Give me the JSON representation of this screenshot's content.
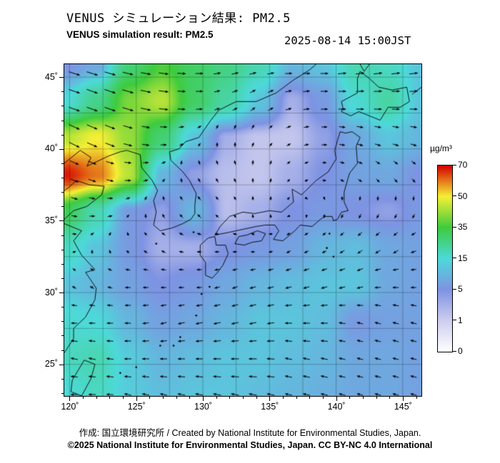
{
  "header": {
    "title_jp": "VENUS シミュレーション結果: PM2.5",
    "title_en": "VENUS simulation result: PM2.5",
    "datetime": "2025-08-14 15:00JST"
  },
  "footer": {
    "credit": "作成: 国立環境研究所 / Created by National Institute for Environmental Studies, Japan.",
    "copyright": "©2025 National Institute for Environmental Studies, Japan. CC BY-NC 4.0 International"
  },
  "colorbar": {
    "unit": "µg/m³",
    "ticks": [
      0,
      1,
      5,
      15,
      35,
      50,
      70
    ]
  },
  "chart_data": {
    "type": "heatmap",
    "title": "VENUS simulation result: PM2.5",
    "subtitle_jp": "VENUS シミュレーション結果: PM2.5",
    "timestamp": "2025-08-14 15:00JST",
    "units": "µg/m³",
    "overlays": [
      "wind-vectors",
      "coastlines",
      "graticule"
    ],
    "lon_range": [
      119.6,
      146.4
    ],
    "lat_range": [
      22.8,
      45.9
    ],
    "graticule_step": 2.5,
    "xticks": {
      "values": [
        120,
        125,
        130,
        135,
        140,
        145
      ],
      "labels": [
        "120˚",
        "125˚",
        "130˚",
        "135˚",
        "140˚",
        "145˚"
      ]
    },
    "yticks": {
      "values": [
        25,
        30,
        35,
        40,
        45
      ],
      "labels": [
        "25˚",
        "30˚",
        "35˚",
        "40˚",
        "45˚"
      ]
    },
    "colormap": {
      "values": [
        0,
        1,
        5,
        15,
        35,
        50,
        70
      ],
      "colors": [
        "#ffffff",
        "#cdcdee",
        "#7e93e2",
        "#4dd9d9",
        "#3ecb3e",
        "#f5ef35",
        "#d40000"
      ]
    },
    "pm25": {
      "lons": [
        119.6,
        122.0,
        124.5,
        126.9,
        129.3,
        131.8,
        134.2,
        136.6,
        139.1,
        141.5,
        143.9,
        146.4
      ],
      "lats": [
        45.9,
        43.3,
        40.8,
        38.2,
        35.6,
        33.0,
        30.5,
        27.9,
        25.4,
        22.8
      ],
      "values": [
        [
          5,
          8,
          28,
          36,
          30,
          26,
          20,
          10,
          12,
          20,
          18,
          12
        ],
        [
          15,
          25,
          40,
          45,
          30,
          22,
          12,
          3,
          6,
          16,
          22,
          12
        ],
        [
          45,
          50,
          42,
          28,
          12,
          3,
          1.5,
          1.5,
          4,
          8,
          12,
          10
        ],
        [
          68,
          60,
          45,
          10,
          4,
          2,
          1.5,
          3,
          5,
          7,
          8,
          5
        ],
        [
          32,
          20,
          6,
          4,
          10,
          2,
          3,
          5,
          6,
          5,
          4,
          6
        ],
        [
          18,
          12,
          6,
          3,
          3,
          5,
          6,
          7,
          10,
          11,
          8,
          7
        ],
        [
          12,
          10,
          7,
          5,
          6,
          8,
          10,
          11,
          12,
          12,
          8,
          7
        ],
        [
          16,
          15,
          10,
          7,
          8,
          10,
          12,
          12,
          11,
          6,
          7,
          7
        ],
        [
          18,
          20,
          13,
          10,
          11,
          12,
          12,
          11,
          10,
          8,
          8,
          7
        ],
        [
          15,
          18,
          13,
          11,
          12,
          12,
          11,
          10,
          9,
          8,
          8,
          7
        ]
      ]
    },
    "wind": {
      "u": [
        [
          10,
          10,
          9,
          8,
          6,
          5,
          5,
          5,
          6,
          7,
          7,
          7
        ],
        [
          12,
          11,
          10,
          8,
          5,
          3,
          3,
          4,
          5,
          6,
          6,
          6
        ],
        [
          10,
          9,
          7,
          4,
          1,
          0,
          1,
          2,
          3,
          4,
          4,
          4
        ],
        [
          7,
          6,
          4,
          1,
          -1,
          -1,
          0,
          1,
          1,
          2,
          2,
          2
        ],
        [
          4,
          3,
          1,
          -1,
          -2,
          -1,
          0,
          0,
          0,
          -1,
          -1,
          -1
        ],
        [
          1,
          0,
          -1,
          -2,
          -2,
          -2,
          -1,
          -2,
          -2,
          -3,
          -3,
          -3
        ],
        [
          -2,
          -2,
          -3,
          -3,
          -3,
          -3,
          -4,
          -4,
          -4,
          -4,
          -4,
          -3
        ],
        [
          -4,
          -4,
          -4,
          -4,
          -5,
          -5,
          -5,
          -5,
          -5,
          -4,
          -4,
          -4
        ],
        [
          -5,
          -5,
          -5,
          -5,
          -5,
          -6,
          -6,
          -5,
          -5,
          -4,
          -4,
          -4
        ],
        [
          -5,
          -5,
          -5,
          -5,
          -6,
          -6,
          -6,
          -5,
          -5,
          -4,
          -4,
          -4
        ]
      ],
      "v": [
        [
          -3,
          -3,
          -2,
          -1,
          0,
          1,
          1,
          0,
          0,
          1,
          1,
          1
        ],
        [
          -4,
          -4,
          -3,
          -1,
          0,
          1,
          2,
          1,
          0,
          0,
          0,
          0
        ],
        [
          -5,
          -4,
          -2,
          0,
          1,
          2,
          2,
          1,
          0,
          -1,
          -1,
          -1
        ],
        [
          -3,
          -2,
          0,
          1,
          2,
          2,
          2,
          1,
          0,
          -1,
          -2,
          -2
        ],
        [
          -1,
          0,
          1,
          2,
          2,
          1,
          1,
          0,
          -1,
          -2,
          -2,
          -2
        ],
        [
          0,
          1,
          1,
          1,
          0,
          0,
          0,
          -1,
          -1,
          -2,
          -2,
          -1
        ],
        [
          1,
          1,
          0,
          0,
          0,
          -1,
          -1,
          -1,
          -1,
          -1,
          0,
          0
        ],
        [
          0,
          0,
          0,
          -1,
          -1,
          -1,
          -1,
          0,
          0,
          1,
          1,
          1
        ],
        [
          1,
          1,
          0,
          0,
          0,
          0,
          0,
          1,
          1,
          1,
          1,
          1
        ],
        [
          0,
          0,
          1,
          1,
          1,
          1,
          1,
          1,
          1,
          1,
          1,
          1
        ]
      ]
    },
    "coastlines": {
      "honshu": [
        [
          130.9,
          34.0
        ],
        [
          132,
          34.2
        ],
        [
          133,
          34.4
        ],
        [
          134,
          34.6
        ],
        [
          134.7,
          34.7
        ],
        [
          135.4,
          34.7
        ],
        [
          135.7,
          34.3
        ],
        [
          135.3,
          33.7
        ],
        [
          136,
          33.6
        ],
        [
          136.9,
          34.3
        ],
        [
          137.3,
          34.7
        ],
        [
          138.2,
          34.6
        ],
        [
          138.7,
          35.0
        ],
        [
          139.1,
          35.3
        ],
        [
          139.7,
          35.3
        ],
        [
          139.8,
          35.0
        ],
        [
          140.1,
          35.1
        ],
        [
          140.4,
          35.6
        ],
        [
          140.9,
          35.7
        ],
        [
          140.6,
          36.3
        ],
        [
          140.6,
          37.0
        ],
        [
          141,
          38.3
        ],
        [
          141.6,
          39.0
        ],
        [
          141.5,
          40.2
        ],
        [
          141.8,
          40.8
        ],
        [
          141.2,
          41.2
        ],
        [
          140.7,
          41.1
        ],
        [
          140.3,
          41.2
        ],
        [
          140.1,
          40.6
        ],
        [
          139.9,
          39.9
        ],
        [
          140,
          39.3
        ],
        [
          139.4,
          38.4
        ],
        [
          138.5,
          37.8
        ],
        [
          137.4,
          36.8
        ],
        [
          136.7,
          37.2
        ],
        [
          136.8,
          36.3
        ],
        [
          135.9,
          35.6
        ],
        [
          135,
          35.7
        ],
        [
          133.9,
          35.5
        ],
        [
          133,
          35.6
        ],
        [
          132,
          35.3
        ],
        [
          131.3,
          34.6
        ],
        [
          130.9,
          34.0
        ]
      ],
      "hokkaido": [
        [
          140.4,
          42.6
        ],
        [
          141.1,
          42.3
        ],
        [
          141.7,
          42.6
        ],
        [
          142.5,
          42.3
        ],
        [
          143.3,
          42.0
        ],
        [
          143.9,
          42.9
        ],
        [
          144.8,
          42.9
        ],
        [
          145.5,
          43.3
        ],
        [
          145.3,
          44.3
        ],
        [
          144.2,
          44.1
        ],
        [
          143.2,
          44.3
        ],
        [
          142.5,
          44.9
        ],
        [
          141.8,
          45.4
        ],
        [
          141.6,
          44.9
        ],
        [
          141.6,
          43.9
        ],
        [
          140.4,
          43.3
        ],
        [
          140.5,
          42.9
        ],
        [
          140.4,
          42.6
        ]
      ],
      "kyushu": [
        [
          130.2,
          31.2
        ],
        [
          130.7,
          31.0
        ],
        [
          131.1,
          31.4
        ],
        [
          131.5,
          31.9
        ],
        [
          131.9,
          32.7
        ],
        [
          131.7,
          33.3
        ],
        [
          131.0,
          33.3
        ],
        [
          130.9,
          33.9
        ],
        [
          130.4,
          33.8
        ],
        [
          129.8,
          33.3
        ],
        [
          129.8,
          32.6
        ],
        [
          130.2,
          32.1
        ],
        [
          130.2,
          31.2
        ]
      ],
      "shikoku": [
        [
          132.4,
          33.4
        ],
        [
          133.1,
          33.3
        ],
        [
          133.7,
          33.5
        ],
        [
          134.4,
          33.6
        ],
        [
          134.7,
          34.1
        ],
        [
          134.1,
          34.3
        ],
        [
          133.3,
          34.0
        ],
        [
          132.7,
          33.9
        ],
        [
          132.4,
          33.4
        ]
      ],
      "korea_asia": [
        [
          124.3,
          39.9
        ],
        [
          125.3,
          39.6
        ],
        [
          125.4,
          38.7
        ],
        [
          126.2,
          37.8
        ],
        [
          126.6,
          37.1
        ],
        [
          126.3,
          36.4
        ],
        [
          126.5,
          35.6
        ],
        [
          126.3,
          34.7
        ],
        [
          126.8,
          34.3
        ],
        [
          127.7,
          34.5
        ],
        [
          128.5,
          34.8
        ],
        [
          129.1,
          35.1
        ],
        [
          129.4,
          35.5
        ],
        [
          129.4,
          36.1
        ],
        [
          129.5,
          36.9
        ],
        [
          129.0,
          37.8
        ],
        [
          128.5,
          38.4
        ],
        [
          127.6,
          39.2
        ],
        [
          127.5,
          39.8
        ],
        [
          128.2,
          40.0
        ],
        [
          128.7,
          40.5
        ],
        [
          129.7,
          40.8
        ],
        [
          130.6,
          42.0
        ],
        [
          131.2,
          42.7
        ],
        [
          132.5,
          43.3
        ],
        [
          134.0,
          43.3
        ],
        [
          135.5,
          43.9
        ],
        [
          136.8,
          44.8
        ],
        [
          138.0,
          45.5
        ],
        [
          138.5,
          45.9
        ]
      ],
      "china_coast": [
        [
          119.6,
          25.8
        ],
        [
          120.3,
          26.8
        ],
        [
          120.3,
          27.5
        ],
        [
          121.2,
          28.3
        ],
        [
          121.9,
          29.5
        ],
        [
          122.0,
          30.3
        ],
        [
          121.2,
          31.4
        ],
        [
          121.9,
          31.6
        ],
        [
          120.9,
          32.6
        ],
        [
          120.3,
          33.6
        ],
        [
          120.9,
          34.3
        ],
        [
          119.6,
          34.8
        ]
      ],
      "shandong": [
        [
          119.6,
          35.1
        ],
        [
          120.3,
          35.7
        ],
        [
          121.3,
          36.0
        ],
        [
          122.4,
          36.8
        ],
        [
          122.6,
          37.4
        ],
        [
          121.5,
          37.5
        ],
        [
          120.5,
          37.8
        ],
        [
          119.9,
          37.3
        ],
        [
          119.6,
          37.1
        ]
      ],
      "liaodong": [
        [
          119.6,
          39.0
        ],
        [
          120.8,
          39.9
        ],
        [
          121.6,
          39.4
        ],
        [
          121.3,
          38.8
        ],
        [
          122.0,
          39.1
        ],
        [
          122.9,
          39.5
        ],
        [
          123.8,
          39.8
        ],
        [
          124.3,
          39.9
        ]
      ],
      "taiwan": [
        [
          120.1,
          23.1
        ],
        [
          120.9,
          22.8
        ],
        [
          121.6,
          24.0
        ],
        [
          121.9,
          25.0
        ],
        [
          121.1,
          25.3
        ],
        [
          120.2,
          23.9
        ],
        [
          120.1,
          23.1
        ]
      ],
      "sakhalin": [
        [
          141.8,
          45.9
        ],
        [
          142.1,
          45.4
        ],
        [
          142.5,
          45.9
        ]
      ],
      "kuril": [
        [
          145.7,
          43.8
        ],
        [
          146.4,
          44.3
        ]
      ]
    },
    "islands": [
      [
        130.5,
        30.4
      ],
      [
        129.9,
        29.9
      ],
      [
        129.5,
        28.4
      ],
      [
        128.3,
        26.9
      ],
      [
        127.8,
        26.3
      ],
      [
        126.8,
        26.3
      ],
      [
        126.5,
        33.4
      ],
      [
        129.3,
        34.2
      ],
      [
        125.0,
        24.8
      ],
      [
        123.8,
        24.4
      ],
      [
        139.5,
        34.1
      ],
      [
        139.3,
        33.1
      ],
      [
        139.8,
        32.5
      ]
    ]
  }
}
